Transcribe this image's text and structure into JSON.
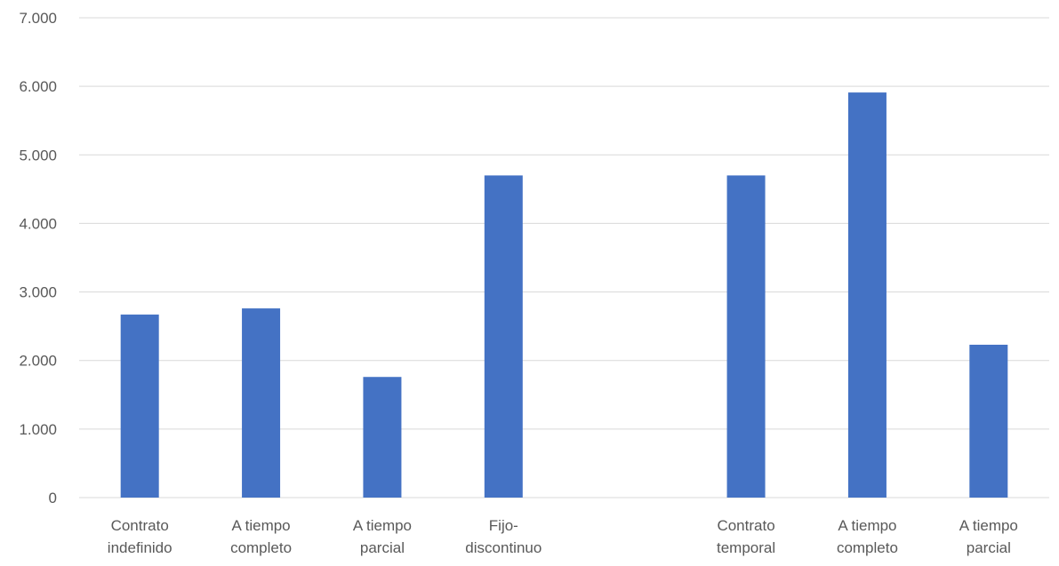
{
  "chart_data": {
    "type": "bar",
    "categories": [
      [
        "Contrato",
        "indefinido"
      ],
      [
        "A tiempo",
        "completo"
      ],
      [
        "A tiempo",
        "parcial"
      ],
      [
        "Fijo-",
        "discontinuo"
      ],
      [
        "",
        ""
      ],
      [
        "Contrato",
        "temporal"
      ],
      [
        "A tiempo",
        "completo"
      ],
      [
        "A tiempo",
        "parcial"
      ]
    ],
    "values": [
      2670,
      2760,
      1760,
      4700,
      null,
      4700,
      5910,
      2230
    ],
    "ylim": [
      0,
      7000
    ],
    "yticks": [
      0,
      1000,
      2000,
      3000,
      4000,
      5000,
      6000,
      7000
    ],
    "ytick_labels": [
      "0",
      "1.000",
      "2.000",
      "3.000",
      "4.000",
      "5.000",
      "6.000",
      "7.000"
    ],
    "grid": true,
    "colors": {
      "bar": "#4472c4",
      "grid": "#d9d9d9",
      "text": "#595959"
    }
  }
}
